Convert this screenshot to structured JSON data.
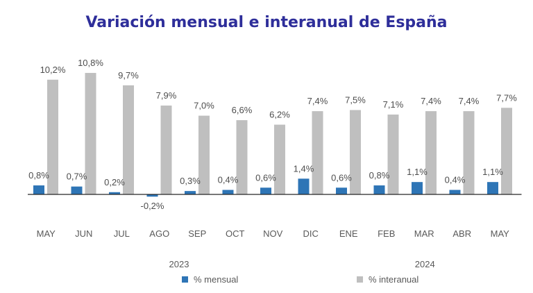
{
  "chart_data": {
    "type": "bar",
    "title": "Variación mensual e interanual de España",
    "categories": [
      "MAY",
      "JUN",
      "JUL",
      "AGO",
      "SEP",
      "OCT",
      "NOV",
      "DIC",
      "ENE",
      "FEB",
      "MAR",
      "ABR",
      "MAY"
    ],
    "years": [
      {
        "label": "2023",
        "from": 0,
        "to": 7
      },
      {
        "label": "2024",
        "from": 8,
        "to": 12
      }
    ],
    "series": [
      {
        "name": "% mensual",
        "values": [
          0.8,
          0.7,
          0.2,
          -0.2,
          0.3,
          0.4,
          0.6,
          1.4,
          0.6,
          0.8,
          1.1,
          0.4,
          1.1
        ],
        "labels": [
          "0,8%",
          "0,7%",
          "0,2%",
          "-0,2%",
          "0,3%",
          "0,4%",
          "0,6%",
          "1,4%",
          "0,6%",
          "0,8%",
          "1,1%",
          "0,4%",
          "1,1%"
        ]
      },
      {
        "name": "% interanual",
        "values": [
          10.2,
          10.8,
          9.7,
          7.9,
          7.0,
          6.6,
          6.2,
          7.4,
          7.5,
          7.1,
          7.4,
          7.4,
          7.7
        ],
        "labels": [
          "10,2%",
          "10,8%",
          "9,7%",
          "7,9%",
          "7,0%",
          "6,6%",
          "6,2%",
          "7,4%",
          "7,5%",
          "7,1%",
          "7,4%",
          "7,4%",
          "7,7%"
        ]
      }
    ],
    "xlabel": "",
    "ylabel": "",
    "ylim": [
      -0.5,
      12
    ],
    "grid": false,
    "legend_position": "bottom"
  },
  "colors": {
    "title": "#2e2e9a",
    "mensual": "#2e75b6",
    "interanual": "#bfbfbf",
    "axis": "#262626"
  }
}
